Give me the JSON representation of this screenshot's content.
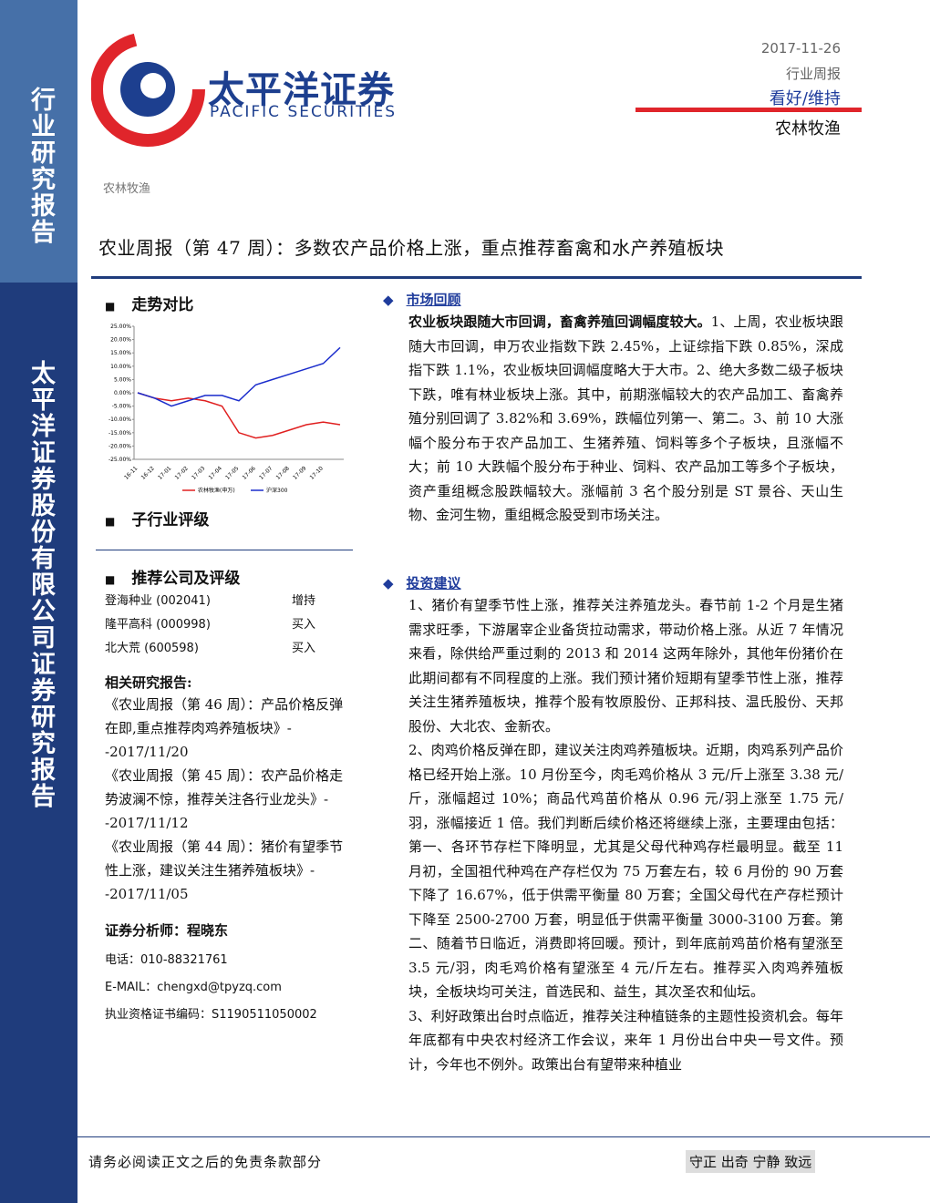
{
  "sidebar": {
    "top": "行业研究报告",
    "bottom": "太平洋证券股份有限公司证券研究报告"
  },
  "header": {
    "logo_cn": "太平洋证券",
    "logo_en": "PACIFIC SECURITIES",
    "date": "2017-11-26",
    "report_type": "行业周报",
    "rating": "看好/维持",
    "industry": "农林牧渔"
  },
  "section_tag": "农林牧渔",
  "title": "农业周报（第 47 周）：多数农产品价格上涨，重点推荐畜禽和水产养殖板块",
  "left": {
    "trend_heading": "走势对比",
    "chart_data": {
      "type": "line",
      "categories": [
        "16-11",
        "16-12",
        "17-01",
        "17-02",
        "17-03",
        "17-04",
        "17-05",
        "17-06",
        "17-07",
        "17-08",
        "17-09",
        "17-10",
        null
      ],
      "series": [
        {
          "name": "农林牧渔(申万)",
          "color": "#e02020",
          "values": [
            0,
            -2,
            -3,
            -2,
            -3,
            -5,
            -15,
            -17,
            -16,
            -14,
            -12,
            -11,
            -12
          ]
        },
        {
          "name": "沪深300",
          "color": "#1a2ccc",
          "values": [
            0,
            -2,
            -5,
            -3,
            -1,
            -1,
            -3,
            3,
            5,
            7,
            9,
            11,
            17
          ]
        }
      ],
      "ylim": [
        -25,
        25
      ],
      "yticks": [
        {
          "value": 25,
          "label": "25.00%"
        },
        {
          "value": 20,
          "label": "20.00%"
        },
        {
          "value": 15,
          "label": "15.00%"
        },
        {
          "value": 10,
          "label": "10.00%"
        },
        {
          "value": 5,
          "label": "5.00%"
        },
        {
          "value": 0,
          "label": "0.00%"
        },
        {
          "value": -5,
          "label": "-5.00%"
        },
        {
          "value": -10,
          "label": "-10.00%"
        },
        {
          "value": -15,
          "label": "-15.00%"
        },
        {
          "value": -20,
          "label": "-20.00%"
        },
        {
          "value": -25,
          "label": "-25.00%"
        }
      ]
    },
    "subindustry_heading": "子行业评级",
    "recommend_heading": "推荐公司及评级",
    "recommendations": [
      [
        "登海种业 (002041)",
        "增持"
      ],
      [
        "隆平高科 (000998)",
        "买入"
      ],
      [
        "北大荒 (600598)",
        "买入"
      ]
    ],
    "related_heading": "相关研究报告:",
    "related": [
      "《农业周报（第 46 周）：产品价格反弹在即,重点推荐肉鸡养殖板块》--2017/11/20",
      "《农业周报（第 45 周）：农产品价格走势波澜不惊，推荐关注各行业龙头》--2017/11/12",
      "《农业周报（第 44 周）：猪价有望季节性上涨，建议关注生猪养殖板块》--2017/11/05"
    ],
    "analyst": {
      "label": "证券分析师：程晓东",
      "phone": "电话：010-88321761",
      "email": "E-MAIL：chengxd@tpyzq.com",
      "license": "执业资格证书编码：S1190511050002"
    }
  },
  "right": {
    "market_heading": "市场回顾",
    "market_lead": "农业板块跟随大市回调，畜禽养殖回调幅度较大。",
    "market_text": "1、上周，农业板块跟随大市回调，申万农业指数下跌 2.45%，上证综指下跌 0.85%，深成指下跌 1.1%，农业板块回调幅度略大于大市。2、绝大多数二级子板块下跌，唯有林业板块上涨。其中，前期涨幅较大的农产品加工、畜禽养殖分别回调了 3.82%和 3.69%，跌幅位列第一、第二。3、前 10 大涨幅个股分布于农产品加工、生猪养殖、饲料等多个子板块，且涨幅不大；前 10 大跌幅个股分布于种业、饲料、农产品加工等多个子板块，资产重组概念股跌幅较大。涨幅前 3 名个股分别是 ST 景谷、天山生物、金河生物，重组概念股受到市场关注。",
    "invest_heading": "投资建议",
    "invest_paragraphs": [
      "1、猪价有望季节性上涨，推荐关注养殖龙头。春节前 1-2 个月是生猪需求旺季，下游屠宰企业备货拉动需求，带动价格上涨。从近 7 年情况来看，除供给严重过剩的 2013 和 2014 这两年除外，其他年份猪价在此期间都有不同程度的上涨。我们预计猪价短期有望季节性上涨，推荐关注生猪养殖板块，推荐个股有牧原股份、正邦科技、温氏股份、天邦股份、大北农、金新农。",
      "2、肉鸡价格反弹在即，建议关注肉鸡养殖板块。近期，肉鸡系列产品价格已经开始上涨。10 月份至今，肉毛鸡价格从 3 元/斤上涨至 3.38 元/斤，涨幅超过 10%；商品代鸡苗价格从 0.96 元/羽上涨至 1.75 元/羽，涨幅接近 1 倍。我们判断后续价格还将继续上涨，主要理由包括：第一、各环节存栏下降明显，尤其是父母代种鸡存栏最明显。截至 11 月初，全国祖代种鸡在产存栏仅为 75 万套左右，较 6 月份的 90 万套下降了 16.67%，低于供需平衡量 80 万套；全国父母代在产存栏预计下降至 2500-2700 万套，明显低于供需平衡量 3000-3100 万套。第二、随着节日临近，消费即将回暖。预计，到年底前鸡苗价格有望涨至 3.5 元/羽，肉毛鸡价格有望涨至 4 元/斤左右。推荐买入肉鸡养殖板块，全板块均可关注，首选民和、益生，其次圣农和仙坛。",
      "3、利好政策出台时点临近，推荐关注种植链条的主题性投资机会。每年年底都有中央农村经济工作会议，来年 1 月份出台中央一号文件。预计，今年也不例外。政策出台有望带来种植业"
    ]
  },
  "footer": {
    "disclaimer": "请务必阅读正文之后的免责条款部分",
    "motto": "守正 出奇 宁静 致远"
  }
}
